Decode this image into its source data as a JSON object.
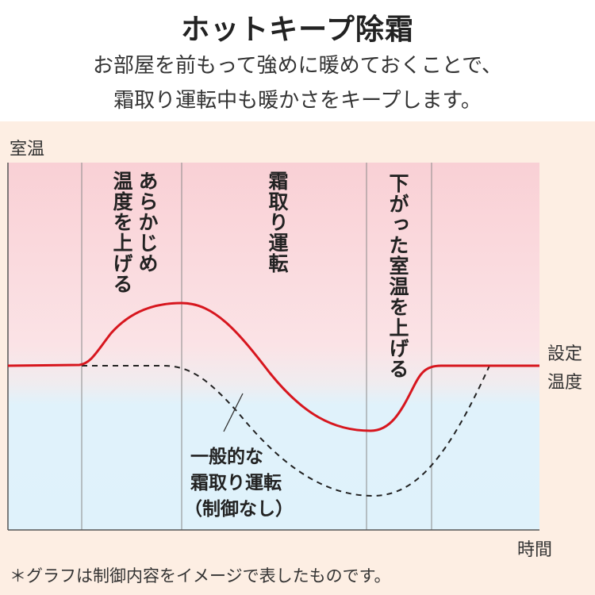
{
  "header": {
    "title": "ホットキープ除霜",
    "subtitle_lines": [
      "お部屋を前もって強めに暖めておくことで、",
      "霜取り運転中も暖かさをキープします。"
    ]
  },
  "diagram": {
    "y_axis_label": "室温",
    "x_axis_label": "時間",
    "setpoint_label": [
      "設定",
      "温度"
    ],
    "phase_labels": {
      "preheat": [
        "あらかじめ",
        "温度を上げる"
      ],
      "defrost": "霜取り運転",
      "recover": "下がった室温を上げる"
    },
    "dashed_label": [
      "一般的な",
      "霜取り運転",
      "（制御なし）"
    ],
    "footnote": "＊グラフは制御内容をイメージで表したものです。",
    "colors": {
      "hot_keep_line": "#d7161e",
      "warm_zone": "#f9d3d7",
      "cool_zone": "#dff2fb",
      "background": "#fdeee3"
    }
  }
}
